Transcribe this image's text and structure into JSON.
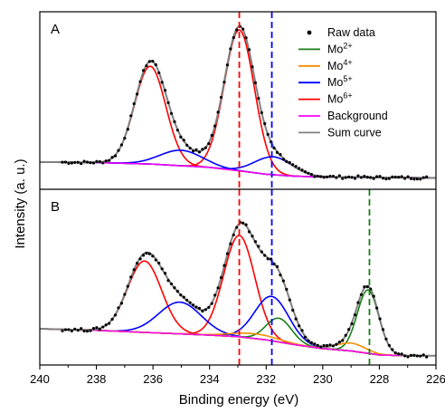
{
  "chart_data": {
    "type": "line",
    "xlabel": "Binding energy (eV)",
    "ylabel": "Intensity (a. u.)",
    "xlim": [
      240,
      226
    ],
    "x_ticks": [
      240,
      238,
      236,
      234,
      232,
      230,
      228,
      226
    ],
    "x_reversed": true,
    "legend": {
      "placement": "top-right of panel A",
      "entries": [
        {
          "label": "Raw data",
          "marker": "dot",
          "color": "#000000"
        },
        {
          "label": "Mo",
          "sup": "2+",
          "color": "#1a7f1a"
        },
        {
          "label": "Mo",
          "sup": "4+",
          "color": "#f28c00"
        },
        {
          "label": "Mo",
          "sup": "5+",
          "color": "#0000ff"
        },
        {
          "label": "Mo",
          "sup": "6+",
          "color": "#ff0000"
        },
        {
          "label": "Background",
          "color": "#ff00ff"
        },
        {
          "label": "Sum curve",
          "color": "#808080"
        }
      ]
    },
    "panels": [
      {
        "label": "A",
        "ylim": [
          0,
          1
        ],
        "reference_lines": [
          {
            "x": 232.95,
            "color": "#ff0000"
          },
          {
            "x": 231.8,
            "color": "#0000ff"
          }
        ],
        "background": {
          "x": [
            240,
            238,
            236,
            234,
            233,
            232,
            231,
            230,
            229,
            228,
            226
          ],
          "y": [
            0.145,
            0.142,
            0.132,
            0.112,
            0.092,
            0.07,
            0.058,
            0.054,
            0.052,
            0.05,
            0.048
          ]
        },
        "peaks": [
          {
            "component": "Mo6+",
            "color": "#ff0000",
            "center": 236.1,
            "amplitude": 0.6,
            "sigma": 0.55
          },
          {
            "component": "Mo6+",
            "color": "#ff0000",
            "center": 232.95,
            "amplitude": 0.865,
            "sigma": 0.53
          },
          {
            "component": "Mo5+",
            "color": "#0000ff",
            "center": 235.0,
            "amplitude": 0.095,
            "sigma": 0.75
          },
          {
            "component": "Mo5+",
            "color": "#0000ff",
            "center": 231.75,
            "amplitude": 0.11,
            "sigma": 0.65
          }
        ]
      },
      {
        "label": "B",
        "ylim": [
          0,
          1
        ],
        "reference_lines": [
          {
            "x": 232.95,
            "color": "#ff0000"
          },
          {
            "x": 231.8,
            "color": "#0000ff"
          },
          {
            "x": 228.35,
            "color": "#1a7f1a"
          }
        ],
        "background": {
          "x": [
            240,
            238,
            236,
            234,
            233,
            232,
            231,
            230,
            229,
            228.4,
            228,
            227,
            226
          ],
          "y": [
            0.2,
            0.19,
            0.175,
            0.16,
            0.15,
            0.13,
            0.1,
            0.075,
            0.06,
            0.045,
            0.035,
            0.03,
            0.03
          ]
        },
        "peaks": [
          {
            "component": "Mo6+",
            "color": "#ff0000",
            "center": 236.3,
            "amplitude": 0.45,
            "sigma": 0.6
          },
          {
            "component": "Mo6+",
            "color": "#ff0000",
            "center": 232.95,
            "amplitude": 0.64,
            "sigma": 0.55
          },
          {
            "component": "Mo5+",
            "color": "#0000ff",
            "center": 235.05,
            "amplitude": 0.2,
            "sigma": 0.75
          },
          {
            "component": "Mo5+",
            "color": "#0000ff",
            "center": 231.8,
            "amplitude": 0.28,
            "sigma": 0.6
          },
          {
            "component": "Mo2+",
            "color": "#1a7f1a",
            "center": 228.4,
            "amplitude": 0.4,
            "sigma": 0.38
          },
          {
            "component": "Mo2+",
            "color": "#1a7f1a",
            "center": 231.55,
            "amplitude": 0.15,
            "sigma": 0.45
          },
          {
            "component": "Mo4+",
            "color": "#f28c00",
            "center": 229.0,
            "amplitude": 0.05,
            "sigma": 0.5
          },
          {
            "component": "Mo4+",
            "color": "#f28c00",
            "center": 232.4,
            "amplitude": 0.03,
            "sigma": 0.8
          }
        ]
      }
    ]
  }
}
